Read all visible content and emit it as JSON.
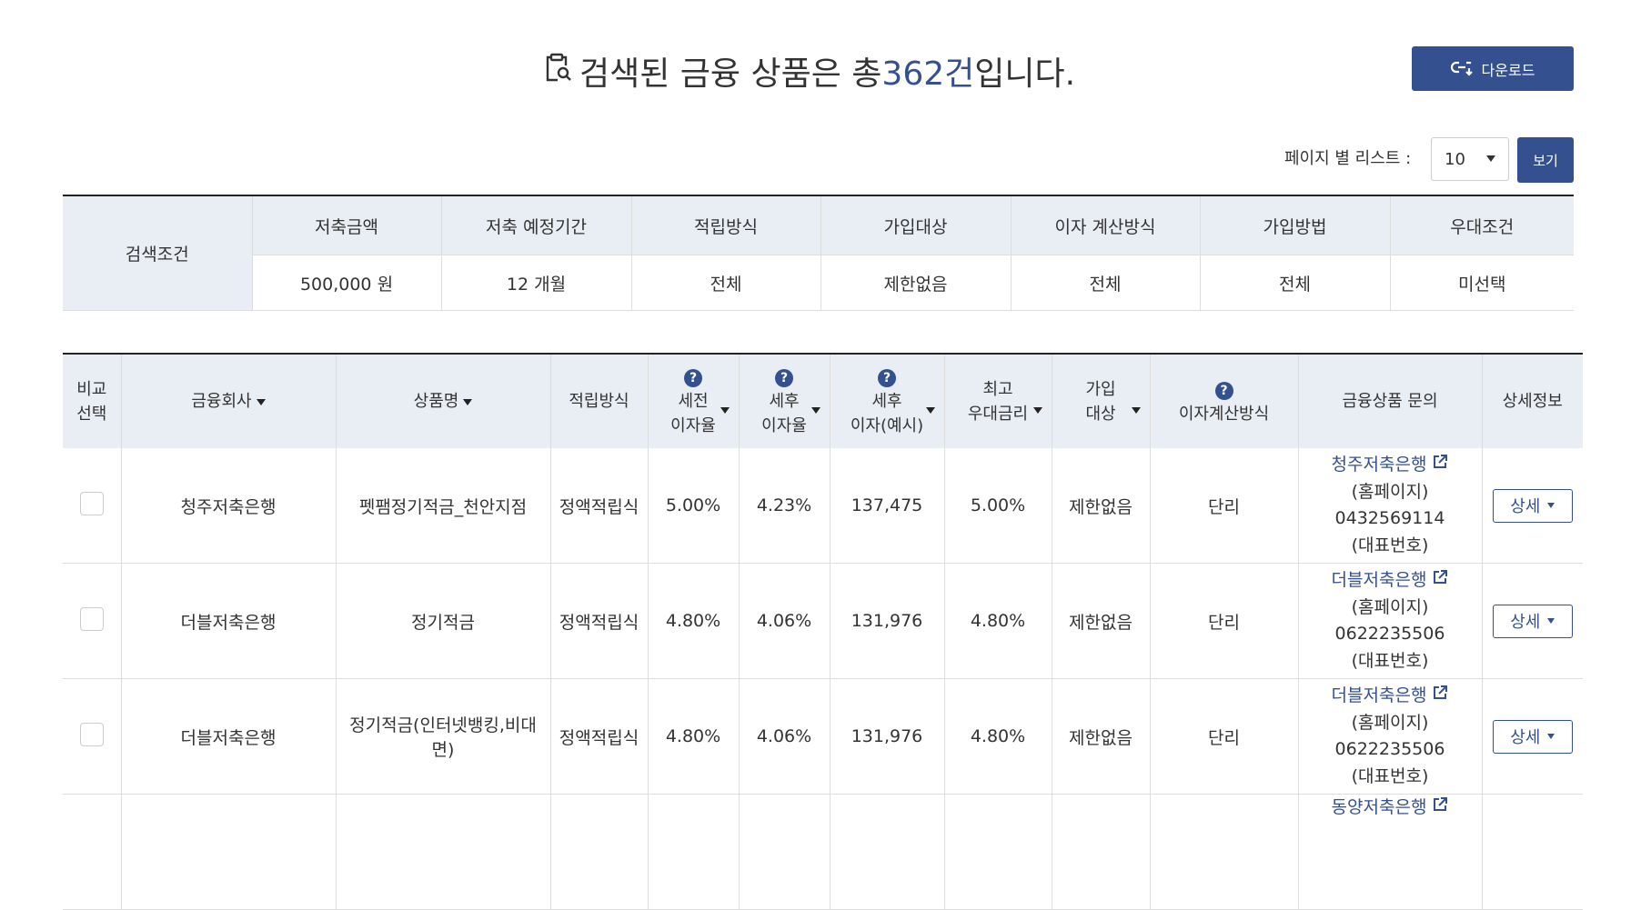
{
  "header": {
    "title_prefix": "검색된 금융 상품은 총 ",
    "title_count": "362건",
    "title_suffix": " 입니다.",
    "title_icon": "clipboard-search-icon",
    "download_label": "다운로드",
    "download_icon": "link-download-icon"
  },
  "paging": {
    "label": "페이지 별 리스트 :",
    "selected": "10",
    "view_label": "보기"
  },
  "conditions": {
    "label": "검색조건",
    "headers": [
      "저축금액",
      "저축 예정기간",
      "적립방식",
      "가입대상",
      "이자 계산방식",
      "가입방법",
      "우대조건"
    ],
    "values": [
      "500,000 원",
      "12 개월",
      "전체",
      "제한없음",
      "전체",
      "전체",
      "미선택"
    ]
  },
  "table": {
    "headers": {
      "compare_1": "비교",
      "compare_2": "선택",
      "company": "금융회사",
      "product": "상품명",
      "method": "적립방식",
      "pretax_1": "세전",
      "pretax_2": "이자율",
      "aftertax_1": "세후",
      "aftertax_2": "이자율",
      "interest_1": "세후",
      "interest_2": "이자(예시)",
      "max_1": "최고",
      "max_2": "우대금리",
      "target_1": "가입",
      "target_2": "대상",
      "calc": "이자계산방식",
      "inquiry": "금융상품 문의",
      "detail": "상세정보",
      "help_mark": "?"
    },
    "rows": [
      {
        "company": "청주저축은행",
        "product": "펫팸정기적금_천안지점",
        "method": "정액적립식",
        "pretax": "5.00%",
        "aftertax": "4.23%",
        "interest": "137,475",
        "max": "5.00%",
        "target": "제한없음",
        "calc": "단리",
        "bank_link": "청주저축은행",
        "homepage": "(홈페이지)",
        "phone": "0432569114",
        "phone_label": "(대표번호)",
        "detail": "상세"
      },
      {
        "company": "더블저축은행",
        "product": "정기적금",
        "method": "정액적립식",
        "pretax": "4.80%",
        "aftertax": "4.06%",
        "interest": "131,976",
        "max": "4.80%",
        "target": "제한없음",
        "calc": "단리",
        "bank_link": "더블저축은행",
        "homepage": "(홈페이지)",
        "phone": "0622235506",
        "phone_label": "(대표번호)",
        "detail": "상세"
      },
      {
        "company": "더블저축은행",
        "product": "정기적금(인터넷뱅킹,비대면)",
        "method": "정액적립식",
        "pretax": "4.80%",
        "aftertax": "4.06%",
        "interest": "131,976",
        "max": "4.80%",
        "target": "제한없음",
        "calc": "단리",
        "bank_link": "더블저축은행",
        "homepage": "(홈페이지)",
        "phone": "0622235506",
        "phone_label": "(대표번호)",
        "detail": "상세"
      },
      {
        "company": "",
        "product": "",
        "method": "",
        "pretax": "",
        "aftertax": "",
        "interest": "",
        "max": "",
        "target": "",
        "calc": "",
        "bank_link": "동양저축은행",
        "homepage": "",
        "phone": "",
        "phone_label": "",
        "detail": ""
      }
    ]
  }
}
